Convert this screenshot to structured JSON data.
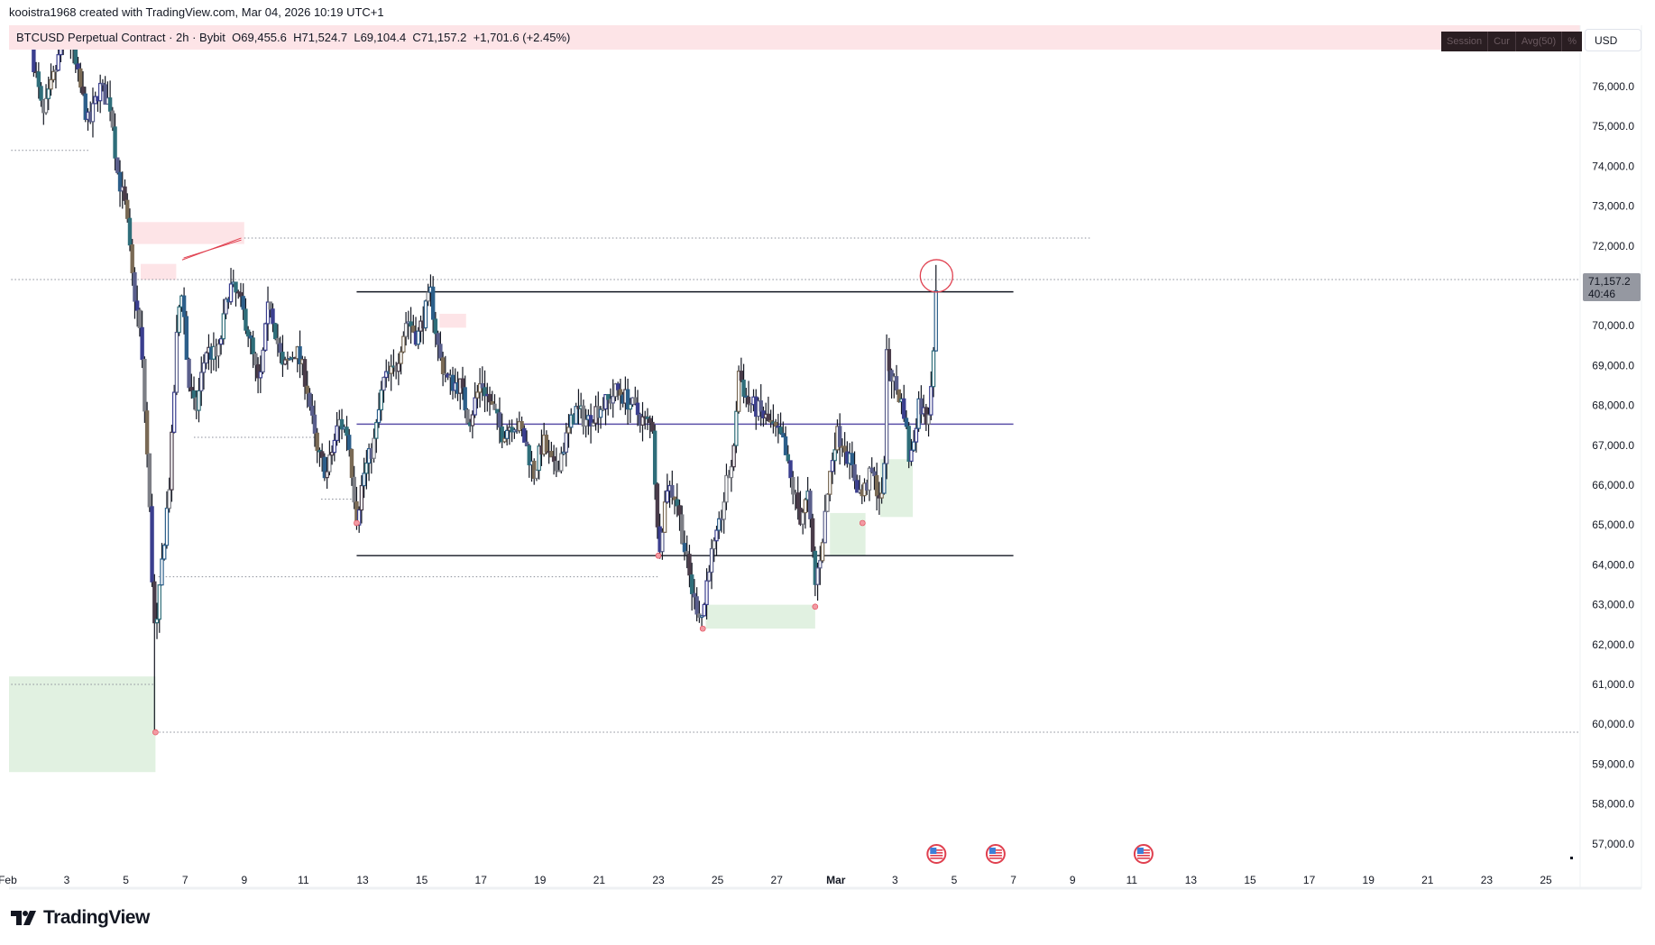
{
  "credit": "kooistra1968 created with TradingView.com, Mar 04, 2026 10:19 UTC+1",
  "legend": {
    "symbol": "BTCUSD Perpetual Contract · 2h · Bybit",
    "open": "O69,455.6",
    "high": "H71,524.7",
    "low": "L69,104.4",
    "close": "C71,157.2",
    "change": "+1,701.6 (+2.45%)"
  },
  "toolbox": [
    "Session",
    "Cur",
    "Avg(50)",
    "%"
  ],
  "currency": "USD",
  "last_price": {
    "value": "71,157.2",
    "countdown": "40:46"
  },
  "logo": "TradingView",
  "colors": {
    "legend_bg": "#fde4e7",
    "supply_zone": "#fde4e7",
    "demand_zone": "#dcefdc",
    "level_line": "#131722",
    "mid_line": "#5b4fa8",
    "marker": "#e0404f"
  },
  "chart_data": {
    "type": "candlestick",
    "interval": "2h",
    "ylim": [
      56500,
      77600
    ],
    "y_ticks": [
      57000,
      58000,
      59000,
      60000,
      61000,
      62000,
      63000,
      64000,
      65000,
      66000,
      67000,
      68000,
      69000,
      70000,
      71000,
      72000,
      73000,
      74000,
      75000,
      76000
    ],
    "x_ticks": [
      {
        "day": 1,
        "month": "Feb",
        "label": "Feb"
      },
      {
        "day": 3,
        "month": "Feb",
        "label": "3"
      },
      {
        "day": 5,
        "month": "Feb",
        "label": "5"
      },
      {
        "day": 7,
        "month": "Feb",
        "label": "7"
      },
      {
        "day": 9,
        "month": "Feb",
        "label": "9"
      },
      {
        "day": 11,
        "month": "Feb",
        "label": "11"
      },
      {
        "day": 13,
        "month": "Feb",
        "label": "13"
      },
      {
        "day": 15,
        "month": "Feb",
        "label": "15"
      },
      {
        "day": 17,
        "month": "Feb",
        "label": "17"
      },
      {
        "day": 19,
        "month": "Feb",
        "label": "19"
      },
      {
        "day": 21,
        "month": "Feb",
        "label": "21"
      },
      {
        "day": 23,
        "month": "Feb",
        "label": "23"
      },
      {
        "day": 25,
        "month": "Feb",
        "label": "25"
      },
      {
        "day": 27,
        "month": "Feb",
        "label": "27"
      },
      {
        "day": 1,
        "month": "Mar",
        "label": "Mar"
      },
      {
        "day": 3,
        "month": "Mar",
        "label": "3"
      },
      {
        "day": 5,
        "month": "Mar",
        "label": "5"
      },
      {
        "day": 7,
        "month": "Mar",
        "label": "7"
      },
      {
        "day": 9,
        "month": "Mar",
        "label": "9"
      },
      {
        "day": 11,
        "month": "Mar",
        "label": "11"
      },
      {
        "day": 13,
        "month": "Mar",
        "label": "13"
      },
      {
        "day": 15,
        "month": "Mar",
        "label": "15"
      },
      {
        "day": 17,
        "month": "Mar",
        "label": "17"
      },
      {
        "day": 19,
        "month": "Mar",
        "label": "19"
      },
      {
        "day": 21,
        "month": "Mar",
        "label": "21"
      },
      {
        "day": 23,
        "month": "Mar",
        "label": "23"
      },
      {
        "day": 25,
        "month": "Mar",
        "label": "25"
      }
    ],
    "price_path_days_since_feb1": [
      [
        0.8,
        77000
      ],
      [
        1.2,
        75200
      ],
      [
        2.0,
        77500
      ],
      [
        2.75,
        75000
      ],
      [
        3.1,
        76000
      ],
      [
        3.5,
        75500
      ],
      [
        3.7,
        73900
      ],
      [
        4.0,
        72900
      ],
      [
        4.2,
        71300
      ],
      [
        4.5,
        69700
      ],
      [
        4.75,
        66300
      ],
      [
        4.9,
        63400
      ],
      [
        5.0,
        62000
      ],
      [
        5.2,
        63900
      ],
      [
        5.5,
        66300
      ],
      [
        5.75,
        70200
      ],
      [
        5.9,
        71000
      ],
      [
        6.1,
        68600
      ],
      [
        6.35,
        67800
      ],
      [
        6.7,
        69400
      ],
      [
        7.1,
        69200
      ],
      [
        7.5,
        71000
      ],
      [
        7.8,
        70700
      ],
      [
        8.1,
        70000
      ],
      [
        8.5,
        68400
      ],
      [
        8.85,
        70700
      ],
      [
        9.3,
        68900
      ],
      [
        9.75,
        69400
      ],
      [
        10.1,
        68600
      ],
      [
        10.45,
        66800
      ],
      [
        10.8,
        66300
      ],
      [
        11.2,
        67600
      ],
      [
        11.5,
        67300
      ],
      [
        11.8,
        65200
      ],
      [
        12.05,
        66300
      ],
      [
        12.4,
        67100
      ],
      [
        12.7,
        68600
      ],
      [
        13.1,
        68900
      ],
      [
        13.5,
        70200
      ],
      [
        13.85,
        69700
      ],
      [
        14.3,
        70800
      ],
      [
        14.6,
        69200
      ],
      [
        14.9,
        68600
      ],
      [
        15.3,
        68500
      ],
      [
        15.6,
        67600
      ],
      [
        16.0,
        68600
      ],
      [
        16.3,
        68100
      ],
      [
        16.7,
        67300
      ],
      [
        17.1,
        67600
      ],
      [
        17.4,
        67300
      ],
      [
        17.8,
        66300
      ],
      [
        18.1,
        67100
      ],
      [
        18.5,
        66300
      ],
      [
        18.85,
        67100
      ],
      [
        19.2,
        67900
      ],
      [
        19.6,
        67600
      ],
      [
        19.9,
        67900
      ],
      [
        20.3,
        68100
      ],
      [
        20.6,
        68400
      ],
      [
        21.0,
        68100
      ],
      [
        21.5,
        67600
      ],
      [
        21.8,
        67500
      ],
      [
        22.0,
        64300
      ],
      [
        22.3,
        66000
      ],
      [
        22.6,
        65700
      ],
      [
        22.95,
        64100
      ],
      [
        23.2,
        63100
      ],
      [
        23.5,
        62700
      ],
      [
        23.7,
        64000
      ],
      [
        24.0,
        64700
      ],
      [
        24.3,
        66000
      ],
      [
        24.55,
        66800
      ],
      [
        24.7,
        68900
      ],
      [
        25.0,
        68100
      ],
      [
        25.35,
        67900
      ],
      [
        25.7,
        67600
      ],
      [
        26.2,
        67100
      ],
      [
        26.5,
        66000
      ],
      [
        26.8,
        65200
      ],
      [
        27.05,
        65700
      ],
      [
        27.3,
        63500
      ],
      [
        27.5,
        64400
      ],
      [
        27.8,
        66300
      ],
      [
        28.0,
        67300
      ],
      [
        28.25,
        67100
      ],
      [
        28.5,
        66500
      ],
      [
        28.85,
        65700
      ],
      [
        29.2,
        66300
      ],
      [
        29.6,
        65500
      ],
      [
        29.7,
        69200
      ],
      [
        29.95,
        68600
      ],
      [
        30.3,
        67900
      ],
      [
        30.5,
        66500
      ],
      [
        30.8,
        68100
      ],
      [
        31.1,
        67600
      ],
      [
        31.3,
        69455.6
      ],
      [
        31.4,
        71157.2
      ]
    ],
    "notable_wicks": [
      {
        "day": 5.0,
        "low": 59800
      },
      {
        "day": 31.4,
        "high": 71524.7
      }
    ],
    "levels": [
      {
        "kind": "resistance",
        "price": 70850,
        "from_day": 11.8,
        "to_day": 34.0
      },
      {
        "kind": "support",
        "price": 64230,
        "from_day": 11.8,
        "to_day": 34.0
      },
      {
        "kind": "mid",
        "price": 67530,
        "from_day": 11.8,
        "to_day": 34.0
      }
    ],
    "dotted_levels": [
      {
        "price": 74400,
        "from_day": 0,
        "to_day": 2.8
      },
      {
        "price": 72200,
        "from_day": 8.0,
        "to_day": 36.6
      },
      {
        "price": 71157.2,
        "from_day": 0,
        "to_day": 53.2
      },
      {
        "price": 67200,
        "from_day": 6.3,
        "to_day": 10.5
      },
      {
        "price": 65650,
        "from_day": 10.6,
        "to_day": 11.8
      },
      {
        "price": 63700,
        "from_day": 5.1,
        "to_day": 22.0
      },
      {
        "price": 61000,
        "from_day": 0,
        "to_day": 5.0
      },
      {
        "price": 59800,
        "from_day": 5.0,
        "to_day": 53.2
      }
    ],
    "supply_zones": [
      {
        "from_day": 4.1,
        "to_day": 8.0,
        "top": 72600,
        "bottom": 72050
      },
      {
        "from_day": 4.5,
        "to_day": 5.7,
        "top": 71550,
        "bottom": 71150
      },
      {
        "from_day": 14.6,
        "to_day": 15.5,
        "top": 70300,
        "bottom": 69950
      }
    ],
    "demand_zones": [
      {
        "from_day": 0,
        "to_day": 5.0,
        "top": 61200,
        "bottom": 58800
      },
      {
        "from_day": 23.6,
        "to_day": 27.3,
        "top": 63000,
        "bottom": 62400
      },
      {
        "from_day": 27.8,
        "to_day": 29.0,
        "top": 65300,
        "bottom": 64230
      },
      {
        "from_day": 29.5,
        "to_day": 30.6,
        "top": 66650,
        "bottom": 65200
      }
    ],
    "swing_low_markers": [
      {
        "day": 5.0,
        "price": 59800
      },
      {
        "day": 11.8,
        "price": 65050
      },
      {
        "day": 22.0,
        "price": 64230
      },
      {
        "day": 23.5,
        "price": 62400
      },
      {
        "day": 27.3,
        "price": 62950
      },
      {
        "day": 28.9,
        "price": 65050
      }
    ],
    "highlight_circle": {
      "day": 31.4,
      "price": 71250
    },
    "wedge_lines": [
      {
        "from": [
          5.9,
          71650
        ],
        "to": [
          7.9,
          72200
        ]
      },
      {
        "from": [
          5.95,
          71700
        ],
        "to": [
          7.9,
          72150
        ]
      }
    ],
    "event_flags": [
      {
        "day": 31.4,
        "label": "US"
      },
      {
        "day": 33.4,
        "label": "US"
      },
      {
        "day": 38.4,
        "label": "US"
      }
    ]
  }
}
